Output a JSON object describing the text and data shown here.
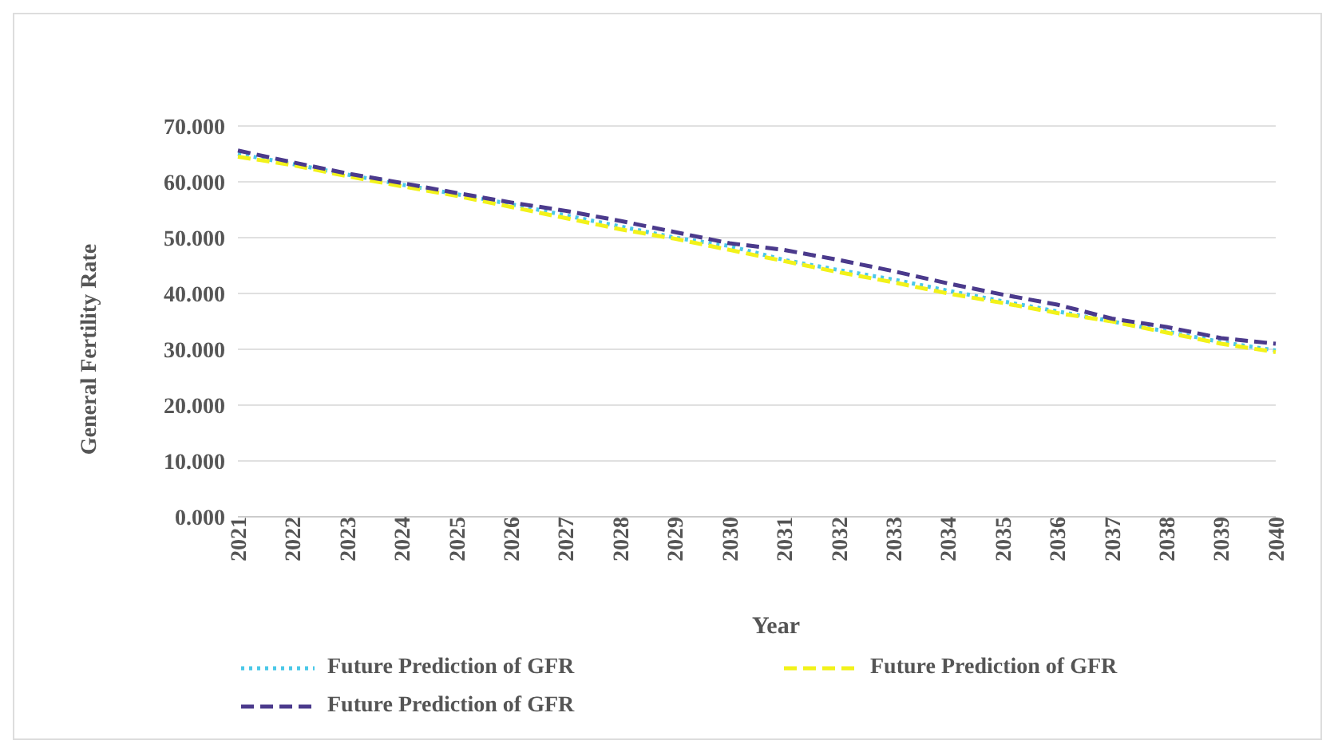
{
  "chart_data": {
    "type": "line",
    "xlabel": "Year",
    "ylabel": "General Fertility Rate",
    "categories": [
      "2021",
      "2022",
      "2023",
      "2024",
      "2025",
      "2026",
      "2027",
      "2028",
      "2029",
      "2030",
      "2031",
      "2032",
      "2033",
      "2034",
      "2035",
      "2036",
      "2037",
      "2038",
      "2039",
      "2040"
    ],
    "series": [
      {
        "name": "Future Prediction of GFR",
        "color": "#4bc8e8",
        "line_style": "dotted",
        "values": [
          65.0,
          63.2,
          61.3,
          59.5,
          57.8,
          56.0,
          54.0,
          52.0,
          50.0,
          48.5,
          46.0,
          44.2,
          42.5,
          40.5,
          38.6,
          36.8,
          35.0,
          33.2,
          31.3,
          29.8
        ]
      },
      {
        "name": "Future Prediction of GFR",
        "color": "#f2f21a",
        "line_style": "dashed",
        "values": [
          64.5,
          63.0,
          61.0,
          59.2,
          57.5,
          55.5,
          53.5,
          51.5,
          49.8,
          47.8,
          45.8,
          43.8,
          42.0,
          40.0,
          38.3,
          36.5,
          35.0,
          33.0,
          31.0,
          29.5
        ]
      },
      {
        "name": "Future Prediction of GFR",
        "color": "#4b3a8c",
        "line_style": "dashed",
        "values": [
          65.6,
          63.5,
          61.5,
          59.8,
          58.0,
          56.3,
          54.8,
          53.0,
          51.0,
          49.0,
          47.8,
          46.0,
          44.0,
          41.8,
          39.8,
          38.0,
          35.5,
          34.0,
          32.0,
          31.0
        ]
      }
    ],
    "ylim": [
      0,
      70
    ],
    "yticks": [
      {
        "value": 0,
        "label": "0.000"
      },
      {
        "value": 10,
        "label": "10.000"
      },
      {
        "value": 20,
        "label": "20.000"
      },
      {
        "value": 30,
        "label": "30.000"
      },
      {
        "value": 40,
        "label": "40.000"
      },
      {
        "value": 50,
        "label": "50.000"
      },
      {
        "value": 60,
        "label": "60.000"
      },
      {
        "value": 70,
        "label": "70.000"
      }
    ],
    "grid": "y",
    "legend": "bottom",
    "marker": "none"
  }
}
